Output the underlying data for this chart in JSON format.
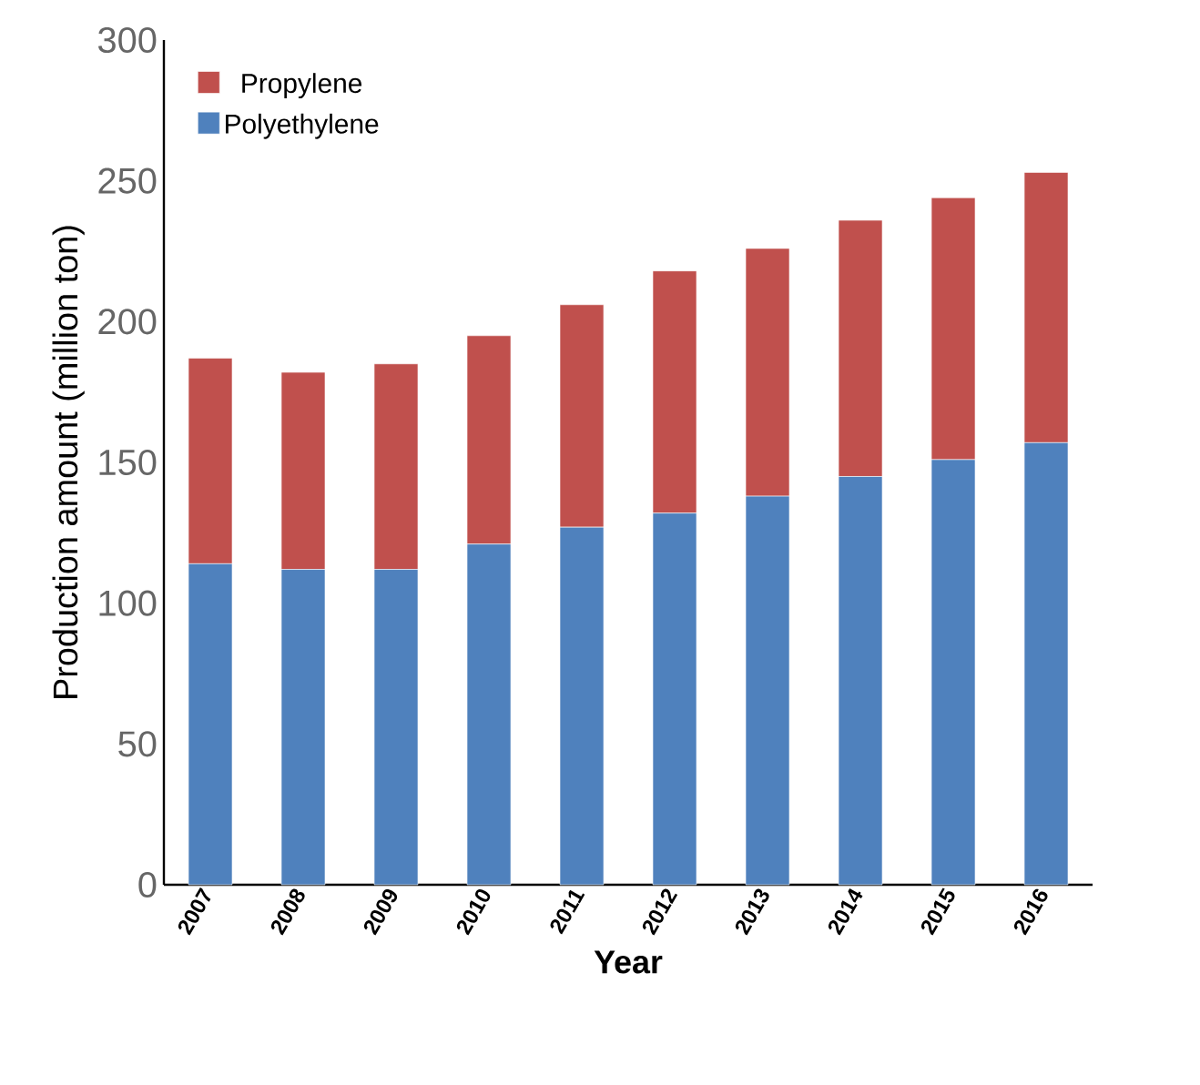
{
  "chart_data": {
    "type": "bar",
    "stacked": true,
    "xlabel": "Year",
    "ylabel": "Production amount (million ton)",
    "categories": [
      "2007",
      "2008",
      "2009",
      "2010",
      "2011",
      "2012",
      "2013",
      "2014",
      "2015",
      "2016"
    ],
    "series": [
      {
        "name": "Polyethylene",
        "color": "#4f81bd",
        "values": [
          114,
          112,
          112,
          121,
          127,
          132,
          138,
          145,
          151,
          157
        ]
      },
      {
        "name": "Propylene",
        "color": "#c0504d",
        "values": [
          73,
          70,
          73,
          74,
          79,
          86,
          88,
          91,
          93,
          96
        ]
      }
    ],
    "ylim": [
      0,
      300
    ],
    "yticks": [
      0,
      50,
      100,
      150,
      200,
      250,
      300
    ],
    "legend": "top left"
  }
}
